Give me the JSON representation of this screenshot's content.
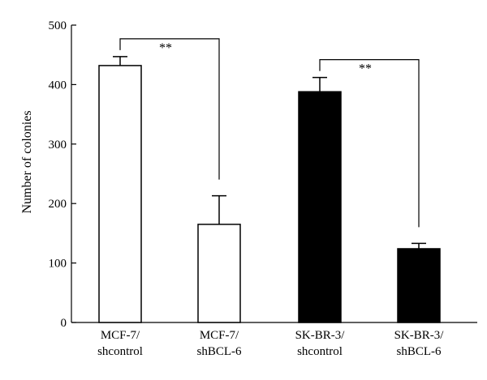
{
  "chart_data": {
    "type": "bar",
    "categories": [
      [
        "MCF-7/",
        "shcontrol"
      ],
      [
        "MCF-7/",
        "shBCL-6"
      ],
      [
        "SK-BR-3/",
        "shcontrol"
      ],
      [
        "SK-BR-3/",
        "shBCL-6"
      ]
    ],
    "values": [
      432,
      165,
      388,
      124
    ],
    "errors": [
      15,
      48,
      24,
      9
    ],
    "bar_colors": [
      "#ffffff",
      "#ffffff",
      "#000000",
      "#000000"
    ],
    "title": "",
    "xlabel": "",
    "ylabel": "Number of colonies",
    "ylim": [
      0,
      500
    ],
    "yticks": [
      0,
      100,
      200,
      300,
      400,
      500
    ],
    "significance": [
      {
        "from": 0,
        "to": 1,
        "label": "**"
      },
      {
        "from": 2,
        "to": 3,
        "label": "**"
      }
    ],
    "grid": false,
    "legend": "none"
  }
}
